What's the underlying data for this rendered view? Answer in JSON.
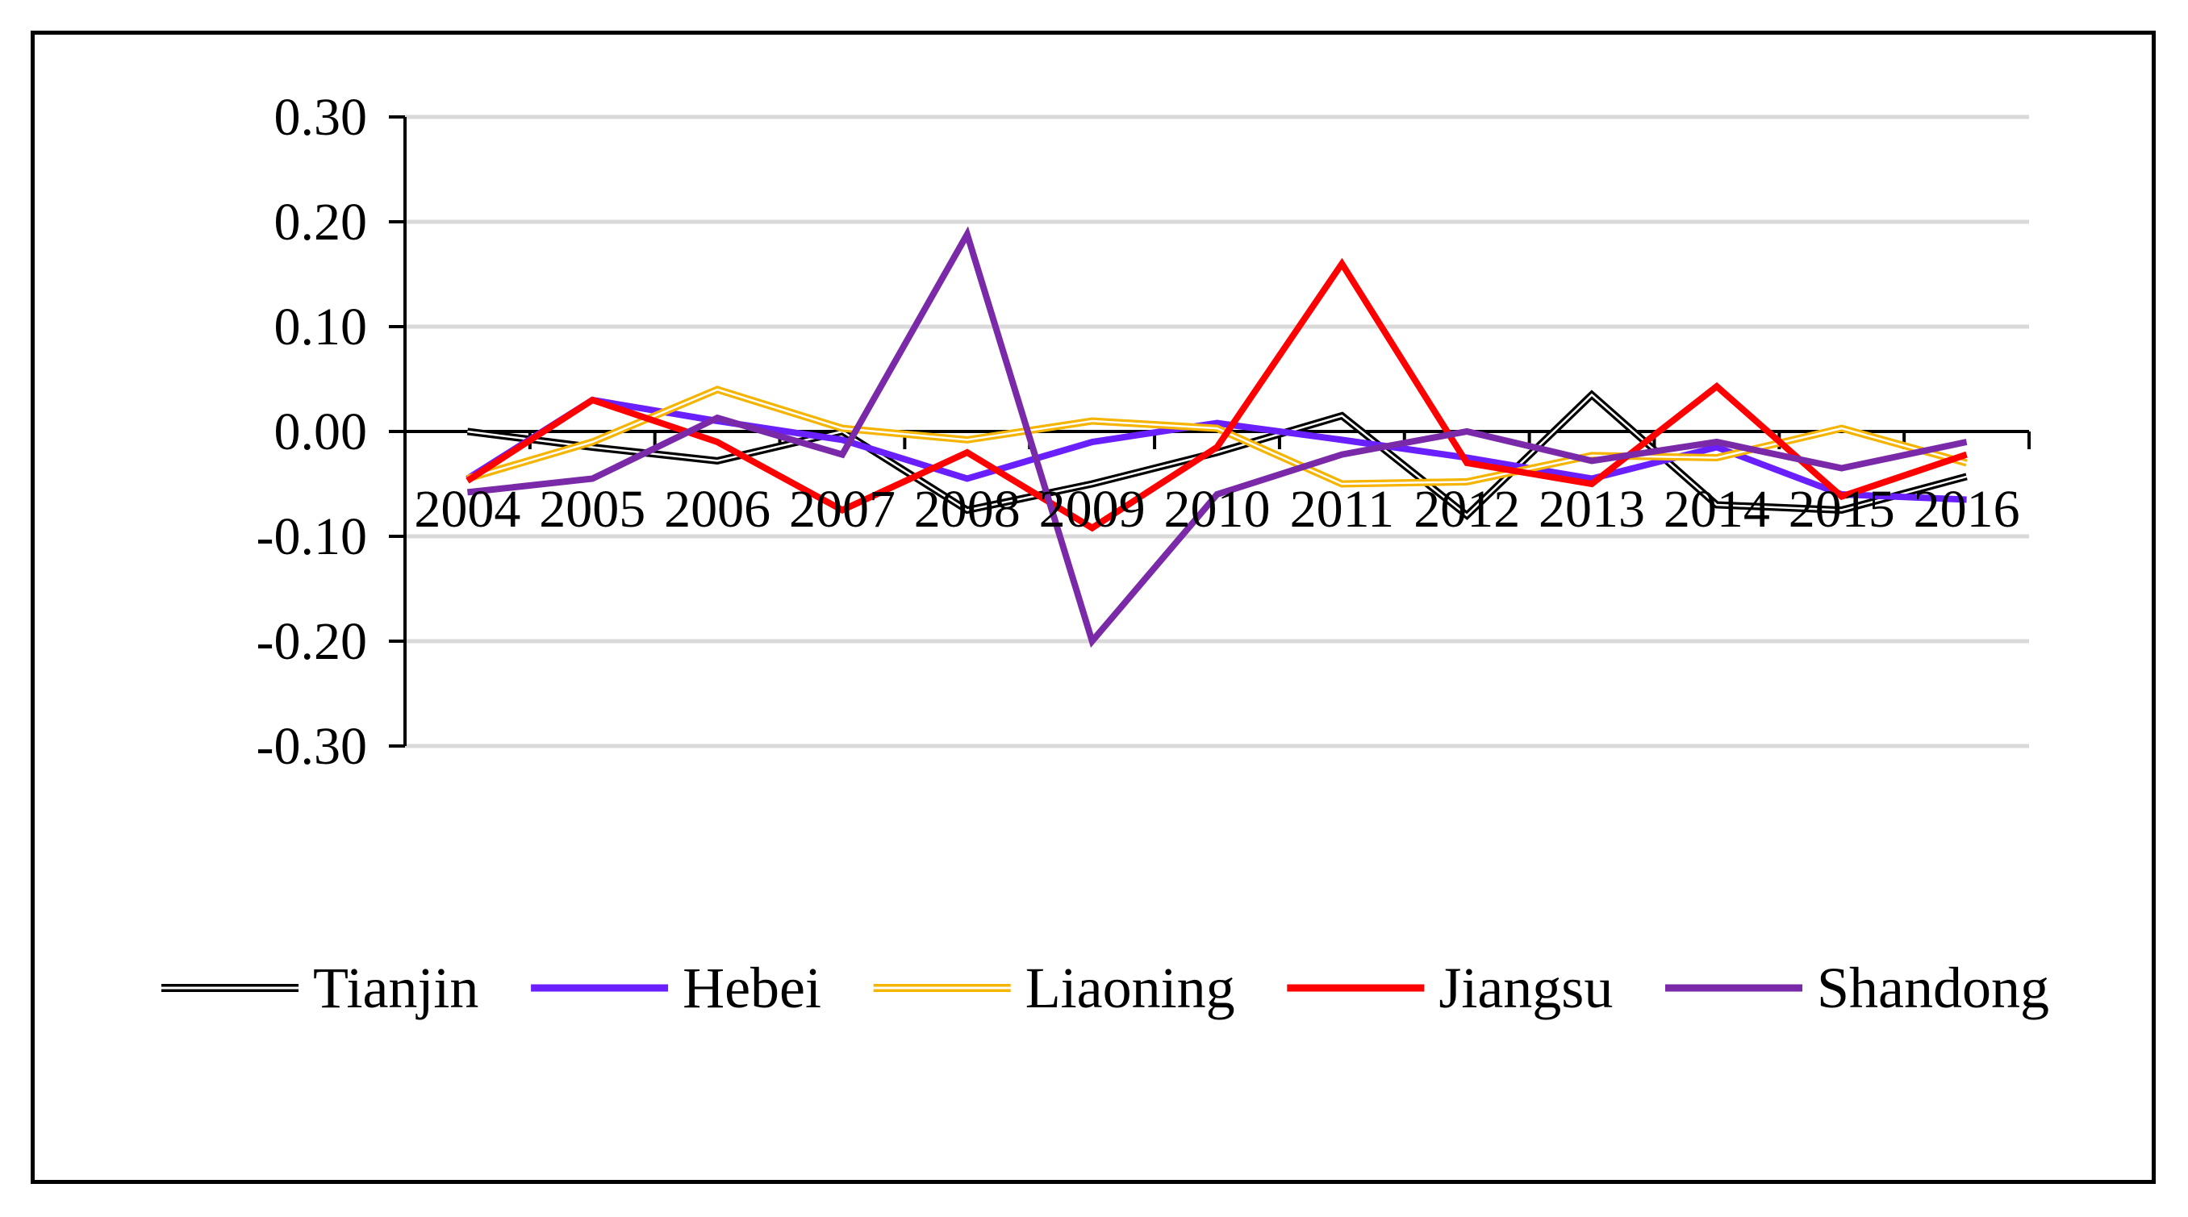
{
  "chart_data": {
    "type": "line",
    "title": "",
    "xlabel": "",
    "ylabel": "",
    "categories": [
      "2004",
      "2005",
      "2006",
      "2007",
      "2008",
      "2009",
      "2010",
      "2011",
      "2012",
      "2013",
      "2014",
      "2015",
      "2016"
    ],
    "ylim": [
      -0.3,
      0.3
    ],
    "yticks": [
      "0.30",
      "0.20",
      "0.10",
      "0.00",
      "-0.10",
      "-0.20",
      "-0.30"
    ],
    "ytick_values": [
      0.3,
      0.2,
      0.1,
      0.0,
      -0.1,
      -0.2,
      -0.3
    ],
    "grid": true,
    "legend_position": "bottom",
    "series": [
      {
        "name": "Tianjin",
        "color": "#000000",
        "style": "double",
        "values": [
          0.0,
          -0.015,
          -0.028,
          0.0,
          -0.075,
          -0.05,
          -0.02,
          0.015,
          -0.08,
          0.035,
          -0.07,
          -0.075,
          -0.043
        ]
      },
      {
        "name": "Hebei",
        "color": "#6a1fff",
        "style": "solid",
        "values": [
          -0.045,
          0.03,
          0.01,
          -0.008,
          -0.045,
          -0.01,
          0.008,
          -0.008,
          -0.025,
          -0.045,
          -0.015,
          -0.06,
          -0.065
        ]
      },
      {
        "name": "Liaoning",
        "color": "#f5b400",
        "style": "double",
        "values": [
          -0.045,
          -0.01,
          0.04,
          0.003,
          -0.008,
          0.01,
          0.003,
          -0.05,
          -0.048,
          -0.023,
          -0.025,
          0.003,
          -0.03
        ]
      },
      {
        "name": "Jiangsu",
        "color": "#ff0000",
        "style": "solid",
        "values": [
          -0.047,
          0.03,
          -0.01,
          -0.075,
          -0.02,
          -0.092,
          -0.015,
          0.16,
          -0.03,
          -0.05,
          0.043,
          -0.062,
          -0.022
        ]
      },
      {
        "name": "Shandong",
        "color": "#7a2aa8",
        "style": "solid",
        "values": [
          -0.058,
          -0.045,
          0.013,
          -0.022,
          0.188,
          -0.2,
          -0.06,
          -0.022,
          0.0,
          -0.028,
          -0.01,
          -0.035,
          -0.01
        ]
      }
    ]
  }
}
